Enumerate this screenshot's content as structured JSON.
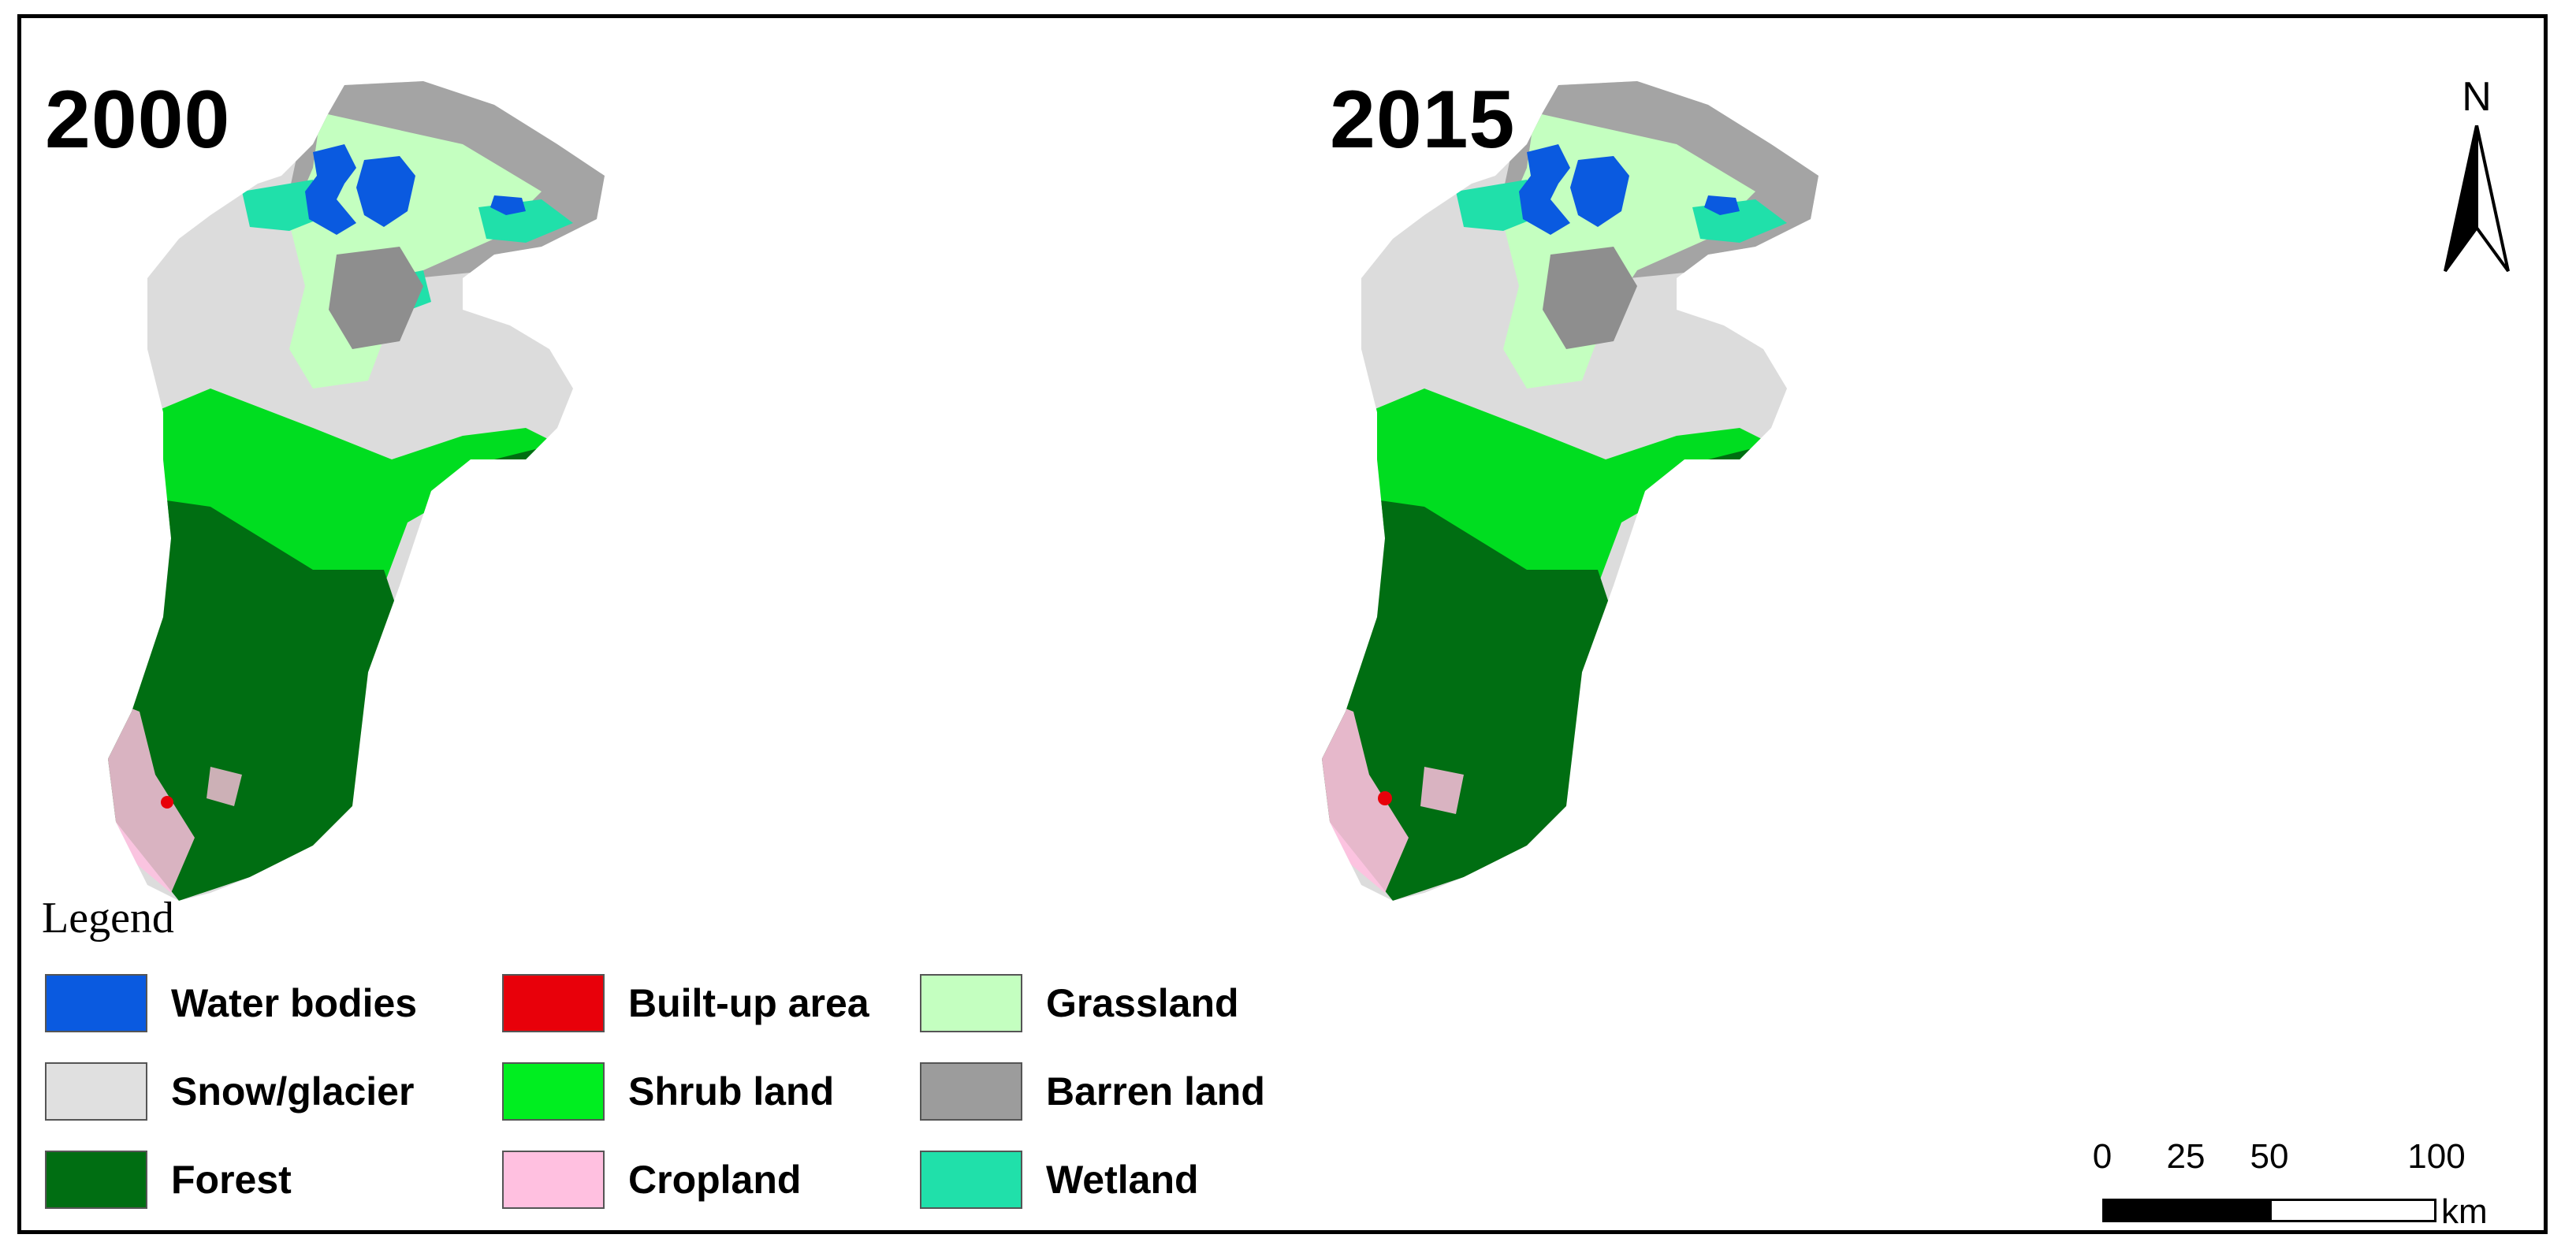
{
  "panels": [
    {
      "year": "2000"
    },
    {
      "year": "2015"
    }
  ],
  "legend": {
    "title": "Legend",
    "items": [
      {
        "label": "Water bodies",
        "color": "#0a5ae0"
      },
      {
        "label": "Built-up area",
        "color": "#e8000a"
      },
      {
        "label": "Grassland",
        "color": "#c4ffc0"
      },
      {
        "label": "Snow/glacier",
        "color": "#e0e0e0"
      },
      {
        "label": "Shrub land",
        "color": "#00ee20"
      },
      {
        "label": "Barren land",
        "color": "#9c9c9c"
      },
      {
        "label": "Forest",
        "color": "#006e12"
      },
      {
        "label": "Cropland",
        "color": "#ffc0e0"
      },
      {
        "label": "Wetland",
        "color": "#20e0aa"
      }
    ]
  },
  "north_arrow": {
    "label": "N"
  },
  "scale_bar": {
    "ticks": [
      "0",
      "25",
      "50",
      "100"
    ],
    "tick_values": [
      0,
      25,
      50,
      100
    ],
    "unit": "km"
  }
}
